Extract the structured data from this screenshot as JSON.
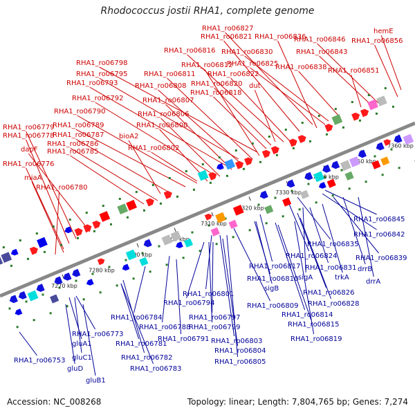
{
  "title": "Rhodococcus jostii RHA1, complete genome",
  "accession": "Accession: NC_008268",
  "topology": "Topology: linear; Length: 7,804,765 bp; Genes: 7,274",
  "colors": {
    "top_label": "#cc0000",
    "bottom_label": "#000099",
    "backbone": "#888888",
    "dots": "#2a7a2a"
  },
  "ticks": [
    "7270 kbp",
    "7280 kbp",
    "7290 kbp",
    "7300 kbp",
    "7310 kbp",
    "7320 kbp",
    "7330 kbp",
    "7340 kbp",
    "7350 kbp",
    "7360 kbp"
  ],
  "top_labels": [
    "hemE",
    "RHA1_ro06856",
    "RHA1_ro06827",
    "RHA1_ro06846",
    "RHA1_ro06821",
    "RHA1_ro06836",
    "RHA1_ro06843",
    "RHA1_ro06816",
    "RHA1_ro06830",
    "RHA1_ro06825",
    "RHA1_ro06838",
    "RHA1_ro06851",
    "RHA1_ro06798",
    "RHA1_ro06812",
    "RHA1_ro06795",
    "RHA1_ro06811",
    "RHA1_ro06822",
    "RHA1_ro06793",
    "RHA1_ro06808",
    "RHA1_ro06820",
    "dut",
    "RHA1_ro06818",
    "RHA1_ro06792",
    "RHA1_ro06807",
    "RHA1_ro06790",
    "RHA1_ro06806",
    "RHA1_ro06789",
    "RHA1_ro06800",
    "RHA1_ro06779",
    "RHA1_ro06787",
    "bioA2",
    "RHA1_ro06778",
    "RHA1_ro06786",
    "RHA1_ro06802",
    "dapF",
    "RHA1_ro06785",
    "RHA1_ro06776",
    "miaA",
    "RHA1_ro06780"
  ],
  "bottom_labels": [
    "RHA1_ro06845",
    "RHA1_ro06842",
    "RHA1_ro06835",
    "RHA1_ro06839",
    "RHA1_ro06824",
    "trkA",
    "drrB",
    "RHA1_ro06817",
    "RHA1_ro06831",
    "sigA",
    "drrA",
    "RHA1_ro06810",
    "RHA1_ro06826",
    "RHA1_ro06801",
    "sigB",
    "RHA1_ro06828",
    "RHA1_ro06794",
    "RHA1_ro06809",
    "RHA1_ro06814",
    "RHA1_ro06784",
    "RHA1_ro06788",
    "RHA1_ro06797",
    "RHA1_ro06799",
    "RHA1_ro06815",
    "RHA1_ro06773",
    "RHA1_ro06791",
    "RHA1_ro06803",
    "RHA1_ro06819",
    "gluA1",
    "RHA1_ro06781",
    "RHA1_ro06804",
    "RHA1_ro06753",
    "gluC1",
    "RHA1_ro06782",
    "RHA1_ro06805",
    "gluD",
    "RHA1_ro06783",
    "gluB1"
  ]
}
